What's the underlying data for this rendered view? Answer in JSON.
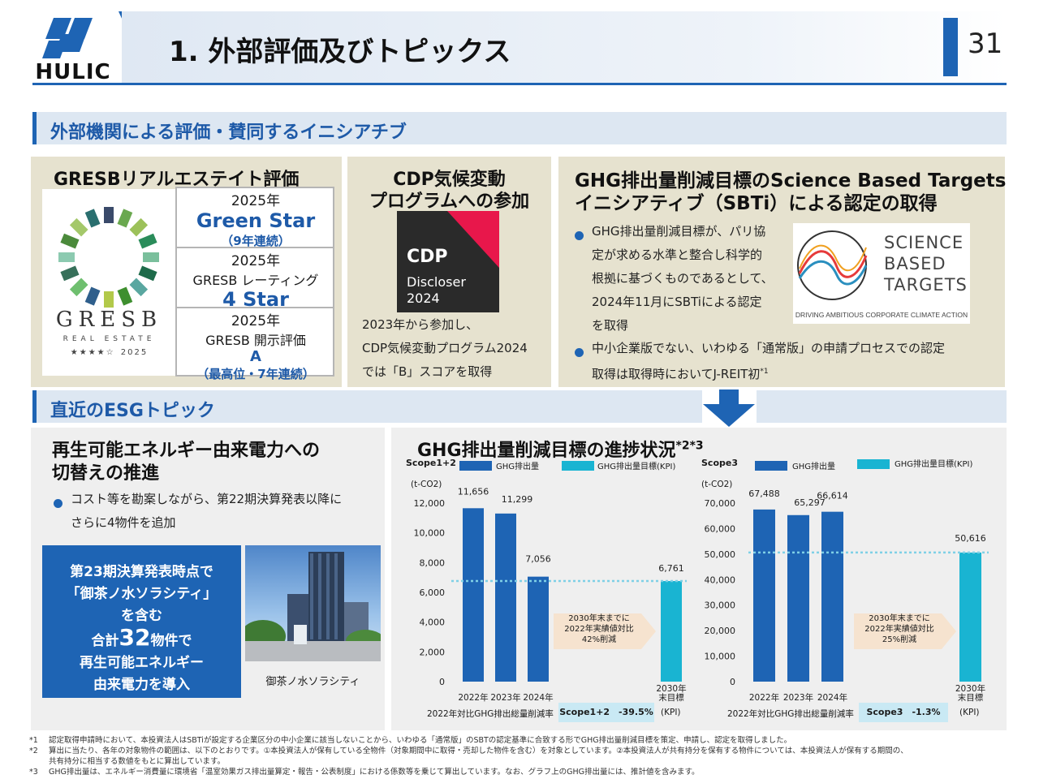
{
  "header": {
    "logo_text": "HULIC",
    "title": "1. 外部評価及びトピックス",
    "page_number": "31"
  },
  "sections": {
    "external": "外部機関による評価・賛同するイニシアチブ",
    "recent": "直近のESGトピック"
  },
  "gresb": {
    "title": "GRESBリアルエステイト評価",
    "logo_main": "GRESB",
    "logo_sub": "REAL ESTATE",
    "logo_stars": "★★★★☆",
    "logo_year": "2025",
    "cells": [
      {
        "year": "2025年",
        "label": "",
        "value": "Green Star",
        "note": "（9年連続）"
      },
      {
        "year": "2025年",
        "label": "GRESB レーティング",
        "value": "4 Star",
        "note": ""
      },
      {
        "year": "2025年",
        "label": "GRESB 開示評価",
        "value": "A",
        "note": "（最高位・7年連続）"
      }
    ]
  },
  "cdp": {
    "title_line1": "CDP気候変動",
    "title_line2": "プログラムへの参加",
    "logo_name": "CDP",
    "logo_line1": "Discloser",
    "logo_line2": "2024",
    "body": [
      "2023年から参加し、",
      "CDP気候変動プログラム2024",
      "では「B」スコアを取得"
    ]
  },
  "sbti": {
    "title_line1": "GHG排出量削減目標のScience Based Targets",
    "title_line2": "イニシアティブ（SBTi）による認定の取得",
    "bullet1": [
      "GHG排出量削減目標が、パリ協",
      "定が求める水準と整合し科学的",
      "根拠に基づくものであるとして、",
      "2024年11月にSBTiによる認定",
      "を取得"
    ],
    "bullet2": [
      "中小企業版でない、いわゆる「通常版」の申請プロセスでの認定",
      "取得は取得時においてJ-REIT初"
    ],
    "bullet2_sup": "*1",
    "logo_l1": "SCIENCE",
    "logo_l2": "BASED",
    "logo_l3": "TARGETS",
    "logo_tag": "DRIVING AMBITIOUS CORPORATE CLIMATE ACTION"
  },
  "renewable": {
    "title_line1": "再生可能エネルギー由来電力への",
    "title_line2": "切替えの推進",
    "bullet": [
      "コスト等を勘案しながら、第22期決算発表以降に",
      "さらに4物件を追加"
    ],
    "box_line1": "第23期決算発表時点で",
    "box_line2": "「御茶ノ水ソラシティ」",
    "box_line3": "を含む",
    "box_pre": "合計",
    "box_num": "32",
    "box_post": "物件で",
    "box_line5": "再生可能エネルギー",
    "box_line6": "由来電力を導入",
    "photo_caption": "御茶ノ水ソラシティ"
  },
  "ghg_progress": {
    "title": "GHG排出量削減目標の進捗状況",
    "title_sup": "*2*3"
  },
  "chart_data": [
    {
      "type": "bar",
      "scope_label": "Scope1+2",
      "unit_label": "(t-CO2)",
      "legend": [
        "GHG排出量",
        "GHG排出量目標(KPI)"
      ],
      "categories": [
        "2022年",
        "2023年",
        "2024年",
        "2030年末目標"
      ],
      "values": [
        11656,
        11299,
        7056,
        6761
      ],
      "value_labels": [
        "11,656",
        "11,299",
        "7,056",
        "6,761"
      ],
      "yticks": [
        "0",
        "2,000",
        "4,000",
        "6,000",
        "8,000",
        "10,000",
        "12,000"
      ],
      "ylim": [
        0,
        12000
      ],
      "target_line": 6761,
      "arrow_text": [
        "2030年末までに",
        "2022年実績値対比",
        "42%削減"
      ],
      "footer_left": "2022年対比GHG排出総量削減率",
      "footer_badge": "Scope1+2　-39.5%",
      "footer_right": "(KPI)",
      "colors": {
        "actual": "#1e64b4",
        "kpi": "#19b4d2"
      }
    },
    {
      "type": "bar",
      "scope_label": "Scope3",
      "unit_label": "(t-CO2)",
      "legend": [
        "GHG排出量",
        "GHG排出量目標(KPI)"
      ],
      "categories": [
        "2022年",
        "2023年",
        "2024年",
        "2030年末目標"
      ],
      "values": [
        67488,
        65297,
        66614,
        50616
      ],
      "value_labels": [
        "67,488",
        "65,297",
        "66,614",
        "50,616"
      ],
      "yticks": [
        "0",
        "10,000",
        "20,000",
        "30,000",
        "40,000",
        "50,000",
        "60,000",
        "70,000"
      ],
      "ylim": [
        0,
        70000
      ],
      "target_line": 50616,
      "arrow_text": [
        "2030年末までに",
        "2022年実績値対比",
        "25%削減"
      ],
      "footer_left": "2022年対比GHG排出総量削減率",
      "footer_badge": "Scope3　-1.3%",
      "footer_right": "(KPI)",
      "colors": {
        "actual": "#1e64b4",
        "kpi": "#19b4d2"
      }
    }
  ],
  "footnotes": [
    {
      "mark": "*1",
      "text": "認定取得申請時において、本投資法人はSBTiが設定する企業区分の中小企業に該当しないことから、いわゆる「通常版」のSBTの認定基準に合致する形でGHG排出量削減目標を策定、申請し、認定を取得しました。"
    },
    {
      "mark": "*2",
      "text": "算出に当たり、各年の対象物件の範囲は、以下のとおりです。①本投資法人が保有している全物件（対象期間中に取得・売却した物件を含む）を対象としています。②本投資法人が共有持分を保有する物件については、本投資法人が保有する期間の、"
    },
    {
      "mark": "",
      "text": "共有持分に相当する数値をもとに算出しています。"
    },
    {
      "mark": "*3",
      "text": "GHG排出量は、エネルギー消費量に環境省「温室効果ガス排出量算定・報告・公表制度」における係数等を乗じて算出しています。なお、グラフ上のGHG排出量には、推計値を含みます。"
    }
  ]
}
